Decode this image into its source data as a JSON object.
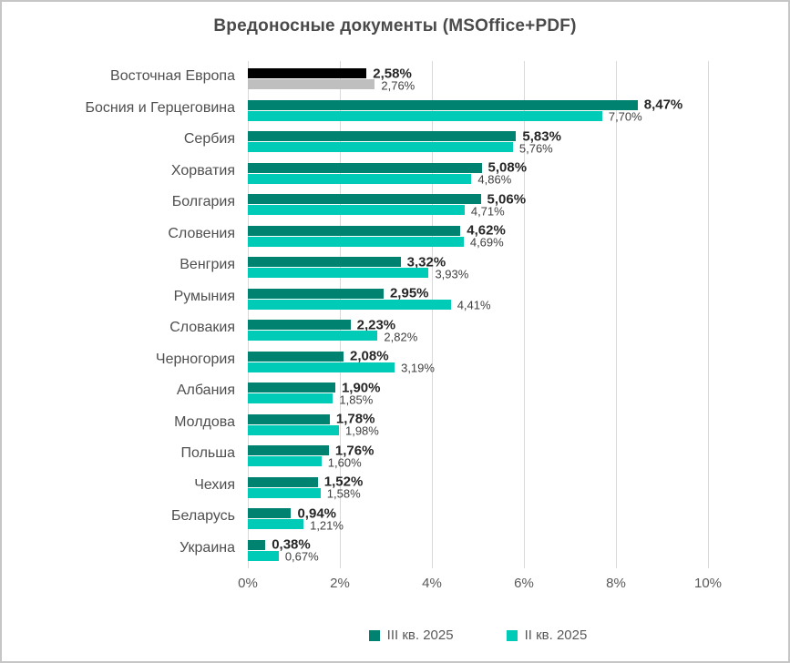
{
  "title": "Вредоносные документы (MSOffice+PDF)",
  "chart_data": {
    "type": "bar",
    "orientation": "horizontal",
    "title": "Вредоносные документы (MSOffice+PDF)",
    "xlabel": "",
    "ylabel": "",
    "xlim": [
      0,
      10
    ],
    "x_tick_labels": [
      "0%",
      "2%",
      "4%",
      "6%",
      "8%",
      "10%"
    ],
    "x_tick_values": [
      0,
      2,
      4,
      6,
      8,
      10
    ],
    "grid": "vertical",
    "legend_position": "bottom",
    "categories": [
      "Восточная Европа",
      "Босния и Герцеговина",
      "Сербия",
      "Хорватия",
      "Болгария",
      "Словения",
      "Венгрия",
      "Румыния",
      "Словакия",
      "Черногория",
      "Албания",
      "Молдова",
      "Польша",
      "Чехия",
      "Беларусь",
      "Украина"
    ],
    "series": [
      {
        "name": "III кв. 2025",
        "color": "#008270",
        "values": [
          2.58,
          8.47,
          5.83,
          5.08,
          5.06,
          4.62,
          3.32,
          2.95,
          2.23,
          2.08,
          1.9,
          1.78,
          1.76,
          1.52,
          0.94,
          0.38
        ],
        "labels": [
          "2,58%",
          "8,47%",
          "5,83%",
          "5,08%",
          "5,06%",
          "4,62%",
          "3,32%",
          "2,95%",
          "2,23%",
          "2,08%",
          "1,90%",
          "1,78%",
          "1,76%",
          "1,52%",
          "0,94%",
          "0,38%"
        ]
      },
      {
        "name": "II кв. 2025",
        "color": "#00cbb7",
        "values": [
          2.76,
          7.7,
          5.76,
          4.86,
          4.71,
          4.69,
          3.93,
          4.41,
          2.82,
          3.19,
          1.85,
          1.98,
          1.6,
          1.58,
          1.21,
          0.67
        ],
        "labels": [
          "2,76%",
          "7,70%",
          "5,76%",
          "4,86%",
          "4,71%",
          "4,69%",
          "3,93%",
          "4,41%",
          "2,82%",
          "3,19%",
          "1,85%",
          "1,98%",
          "1,60%",
          "1,58%",
          "1,21%",
          "0,67%"
        ]
      }
    ],
    "highlight_category": {
      "index": 0,
      "series_colors": [
        "#000000",
        "#bfbfbf"
      ],
      "note": "Regional aggregate row drawn in black and gray"
    }
  },
  "colors": {
    "series_q3": "#008270",
    "series_q2": "#00cbb7",
    "highlight_black": "#000000",
    "highlight_gray": "#bfbfbf",
    "gridline": "#d9d9d9",
    "title_text": "#4a4a4a",
    "axis_text": "#595959",
    "frame_border": "#c6c6c6"
  }
}
